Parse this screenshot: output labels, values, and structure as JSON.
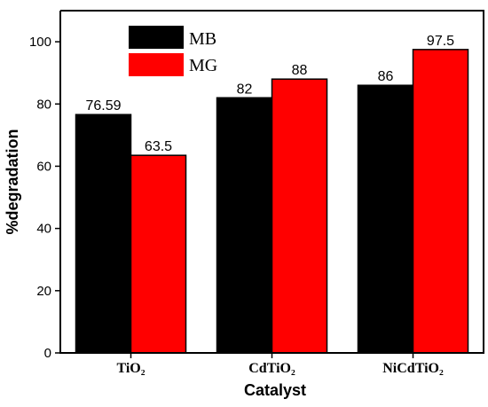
{
  "chart_data": {
    "type": "bar",
    "categories": [
      "TiO₂",
      "CdTiO₂",
      "NiCdTiO₂"
    ],
    "series": [
      {
        "name": "MB",
        "color": "#000000",
        "values": [
          76.59,
          82,
          86
        ],
        "labels": [
          "76.59",
          "82",
          "86"
        ]
      },
      {
        "name": "MG",
        "color": "#ff0000",
        "values": [
          63.5,
          88,
          97.5
        ],
        "labels": [
          "63.5",
          "88",
          "97.5"
        ]
      }
    ],
    "xlabel": "Catalyst",
    "ylabel": "%degradation",
    "ylim": [
      0,
      110
    ],
    "yticks": [
      0,
      20,
      40,
      60,
      80,
      100
    ],
    "grid": false,
    "legend_position": "top-left"
  }
}
